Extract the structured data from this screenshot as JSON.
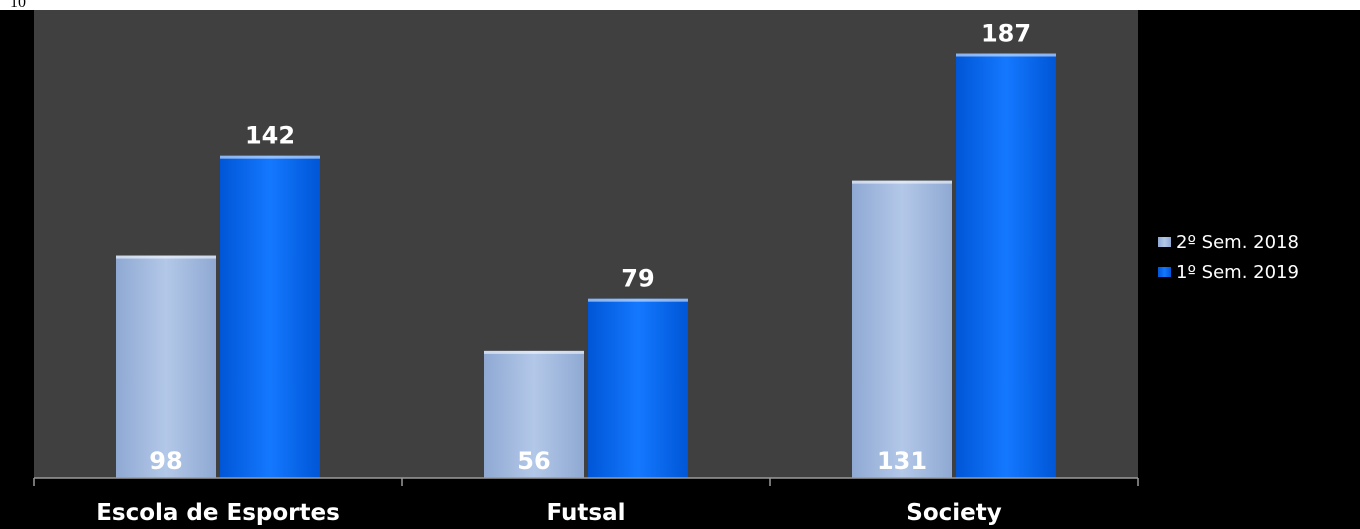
{
  "page": {
    "number": "10"
  },
  "chart_data": {
    "type": "bar",
    "title": "",
    "xlabel": "",
    "ylabel": "",
    "ylim": [
      0,
      200
    ],
    "grid": false,
    "legend_position": "right",
    "categories": [
      "Escola de Esportes",
      "Futsal",
      "Society"
    ],
    "series": [
      {
        "name": "2º Sem. 2018",
        "values": [
          98,
          56,
          131
        ],
        "color": "#a5bde0",
        "label_position": "inside-base"
      },
      {
        "name": "1º Sem. 2019",
        "values": [
          142,
          79,
          187
        ],
        "color": "#0a6cf2",
        "label_position": "above"
      }
    ],
    "plot_background": "#404040",
    "background": "#000000"
  }
}
